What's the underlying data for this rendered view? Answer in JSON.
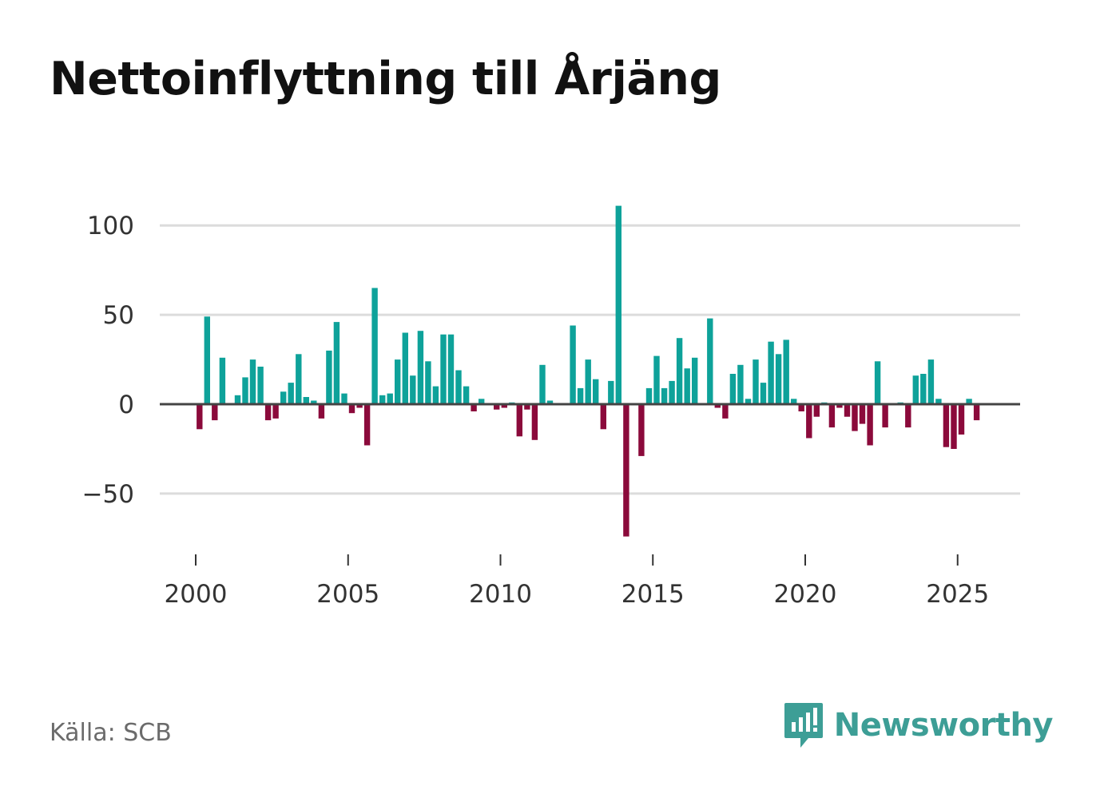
{
  "title": "Nettoinflyttning till Årjäng",
  "source": "Källa: SCB",
  "brand": {
    "name": "Newsworthy",
    "color": "#3d9e96",
    "logo_icon": "newsworthy-logo-icon"
  },
  "colors": {
    "positive": "#0ea29a",
    "negative": "#8b0a3b",
    "grid": "#dcdcdc",
    "zero_line": "#444444",
    "text": "#333333"
  },
  "chart_data": {
    "type": "bar",
    "title": "Nettoinflyttning till Årjäng",
    "xlabel": "",
    "ylabel": "",
    "ylim": [
      -80,
      112
    ],
    "yticks": [
      -50,
      0,
      50,
      100
    ],
    "ytick_labels": [
      "−50",
      "0",
      "50",
      "100"
    ],
    "xticks": [
      2000,
      2005,
      2010,
      2015,
      2020,
      2025
    ],
    "xlim": [
      1998.8,
      2027.0
    ],
    "frequency": "quarterly",
    "start": 2000.0,
    "values": [
      -14,
      49,
      -9,
      26,
      0,
      5,
      15,
      25,
      21,
      -9,
      -8,
      7,
      12,
      28,
      4,
      2,
      -8,
      30,
      46,
      6,
      -5,
      -2,
      -23,
      65,
      5,
      6,
      25,
      40,
      16,
      41,
      24,
      10,
      39,
      39,
      19,
      10,
      -4,
      3,
      0,
      -3,
      -2,
      1,
      -18,
      -3,
      -20,
      22,
      2,
      0,
      0,
      44,
      9,
      25,
      14,
      -14,
      13,
      111,
      -74,
      0,
      -29,
      9,
      27,
      9,
      13,
      37,
      20,
      26,
      0,
      48,
      -2,
      -8,
      17,
      22,
      3,
      25,
      12,
      35,
      28,
      36,
      3,
      -4,
      -19,
      -7,
      1,
      -13,
      -2,
      -7,
      -15,
      -11,
      -23,
      24,
      -13,
      0,
      1,
      -13,
      16,
      17,
      25,
      3,
      -24,
      -25,
      -17,
      3,
      -9
    ]
  }
}
